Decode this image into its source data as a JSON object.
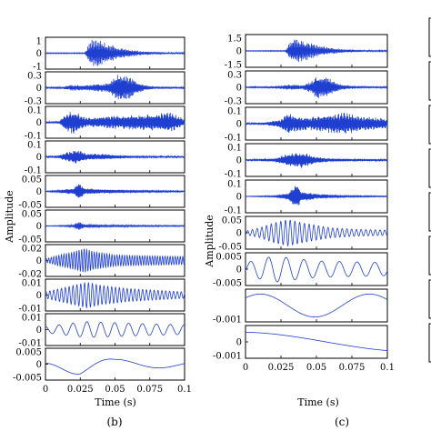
{
  "chart_data": [
    {
      "type": "line",
      "panel_label": "(b)",
      "xlabel": "Time (s)",
      "ylabel": "Amplitude",
      "x_range": [
        0,
        0.1
      ],
      "x_ticks": [
        "0",
        "0.025",
        "0.05",
        "0.075",
        "0.1"
      ],
      "series_color": "#1f3fd1",
      "subplots": [
        {
          "ylim": [
            -1,
            1
          ],
          "y_ticks": [
            "1",
            "0",
            "-1"
          ],
          "envelope": [
            [
              0,
              0.02
            ],
            [
              0.028,
              0.02
            ],
            [
              0.033,
              0.9
            ],
            [
              0.04,
              0.8
            ],
            [
              0.05,
              0.45
            ],
            [
              0.06,
              0.25
            ],
            [
              0.07,
              0.12
            ],
            [
              0.085,
              0.06
            ],
            [
              0.1,
              0.03
            ]
          ],
          "cycles": 300
        },
        {
          "ylim": [
            -0.3,
            0.3
          ],
          "y_ticks": [
            "0.3",
            "0",
            "-0.3"
          ],
          "envelope": [
            [
              0,
              0.01
            ],
            [
              0.012,
              0.02
            ],
            [
              0.02,
              0.06
            ],
            [
              0.03,
              0.05
            ],
            [
              0.046,
              0.1
            ],
            [
              0.052,
              0.27
            ],
            [
              0.06,
              0.22
            ],
            [
              0.07,
              0.06
            ],
            [
              0.08,
              0.02
            ],
            [
              0.1,
              0.01
            ]
          ],
          "cycles": 280
        },
        {
          "ylim": [
            -0.1,
            0.1
          ],
          "y_ticks": [
            "0.1",
            "0",
            "-0.1"
          ],
          "envelope": [
            [
              0,
              0.003
            ],
            [
              0.01,
              0.01
            ],
            [
              0.015,
              0.06
            ],
            [
              0.02,
              0.08
            ],
            [
              0.025,
              0.05
            ],
            [
              0.03,
              0.03
            ],
            [
              0.045,
              0.04
            ],
            [
              0.06,
              0.045
            ],
            [
              0.075,
              0.05
            ],
            [
              0.085,
              0.065
            ],
            [
              0.092,
              0.06
            ],
            [
              0.1,
              0.02
            ]
          ],
          "cycles": 250
        },
        {
          "ylim": [
            -0.1,
            0.1
          ],
          "y_ticks": [
            "0.1",
            "0",
            "-0.1"
          ],
          "envelope": [
            [
              0,
              0.003
            ],
            [
              0.01,
              0.01
            ],
            [
              0.018,
              0.04
            ],
            [
              0.022,
              0.05
            ],
            [
              0.03,
              0.02
            ],
            [
              0.04,
              0.02
            ],
            [
              0.05,
              0.012
            ],
            [
              0.07,
              0.006
            ],
            [
              0.1,
              0.003
            ]
          ],
          "cycles": 220
        },
        {
          "ylim": [
            -0.05,
            0.05
          ],
          "y_ticks": [
            "0.05",
            "0",
            "-0.05"
          ],
          "envelope": [
            [
              0,
              0.001
            ],
            [
              0.01,
              0.004
            ],
            [
              0.02,
              0.01
            ],
            [
              0.024,
              0.028
            ],
            [
              0.028,
              0.01
            ],
            [
              0.04,
              0.006
            ],
            [
              0.06,
              0.004
            ],
            [
              0.1,
              0.002
            ]
          ],
          "cycles": 160
        },
        {
          "ylim": [
            -0.05,
            0.05
          ],
          "y_ticks": [
            "0.05",
            "0",
            "-0.05"
          ],
          "envelope": [
            [
              0,
              0.001
            ],
            [
              0.01,
              0.002
            ],
            [
              0.02,
              0.004
            ],
            [
              0.024,
              0.015
            ],
            [
              0.028,
              0.006
            ],
            [
              0.04,
              0.004
            ],
            [
              0.07,
              0.003
            ],
            [
              0.1,
              0.002
            ]
          ],
          "cycles": 120
        },
        {
          "ylim": [
            -0.02,
            0.02
          ],
          "y_ticks": [
            "0.02",
            "0",
            "-0.02"
          ],
          "envelope": [
            [
              0,
              0.002
            ],
            [
              0.01,
              0.007
            ],
            [
              0.018,
              0.01
            ],
            [
              0.028,
              0.015
            ],
            [
              0.035,
              0.011
            ],
            [
              0.05,
              0.007
            ],
            [
              0.07,
              0.006
            ],
            [
              0.1,
              0.005
            ]
          ],
          "cycles": 55
        },
        {
          "ylim": [
            -0.01,
            0.01
          ],
          "y_ticks": [
            "0.01",
            "0",
            "-0.01"
          ],
          "envelope": [
            [
              0,
              0.002
            ],
            [
              0.01,
              0.004
            ],
            [
              0.02,
              0.006
            ],
            [
              0.03,
              0.008
            ],
            [
              0.04,
              0.006
            ],
            [
              0.06,
              0.004
            ],
            [
              0.08,
              0.003
            ],
            [
              0.1,
              0.002
            ]
          ],
          "cycles": 36
        },
        {
          "ylim": [
            -0.01,
            0.01
          ],
          "y_ticks": [
            "0.01",
            "0",
            "-0.01"
          ],
          "envelope": [
            [
              0,
              0.002
            ],
            [
              0.03,
              0.005
            ],
            [
              0.06,
              0.004
            ],
            [
              0.1,
              0.003
            ]
          ],
          "cycles": 10
        },
        {
          "ylim": [
            -0.005,
            0.005
          ],
          "y_ticks": [
            "0.005",
            "0",
            "-0.005"
          ],
          "envelope": [
            [
              0,
              0.0008
            ],
            [
              0.025,
              0.0035
            ],
            [
              0.05,
              0.0015
            ],
            [
              0.1,
              0.001
            ]
          ],
          "cycles": 1.6
        }
      ]
    },
    {
      "type": "line",
      "panel_label": "(c)",
      "xlabel": "Time (s)",
      "ylabel": "Amplitude",
      "x_range": [
        0,
        0.1
      ],
      "x_ticks": [
        "0",
        "0.025",
        "0.05",
        "0.075",
        "0.1"
      ],
      "series_color": "#1f3fd1",
      "subplots": [
        {
          "ylim": [
            -1.5,
            1.5
          ],
          "y_ticks": [
            "1.5",
            "0",
            "-1.5"
          ],
          "envelope": [
            [
              0,
              0.02
            ],
            [
              0.028,
              0.03
            ],
            [
              0.033,
              1.2
            ],
            [
              0.04,
              1.0
            ],
            [
              0.05,
              0.55
            ],
            [
              0.06,
              0.3
            ],
            [
              0.07,
              0.15
            ],
            [
              0.085,
              0.07
            ],
            [
              0.1,
              0.04
            ]
          ],
          "cycles": 300
        },
        {
          "ylim": [
            -0.3,
            0.3
          ],
          "y_ticks": [
            "0.3",
            "0",
            "-0.3"
          ],
          "envelope": [
            [
              0,
              0.005
            ],
            [
              0.02,
              0.02
            ],
            [
              0.03,
              0.05
            ],
            [
              0.04,
              0.04
            ],
            [
              0.046,
              0.1
            ],
            [
              0.05,
              0.22
            ],
            [
              0.058,
              0.18
            ],
            [
              0.068,
              0.05
            ],
            [
              0.08,
              0.02
            ],
            [
              0.1,
              0.008
            ]
          ],
          "cycles": 280
        },
        {
          "ylim": [
            -0.1,
            0.1
          ],
          "y_ticks": [
            "0.1",
            "0",
            "-0.1"
          ],
          "envelope": [
            [
              0,
              0.003
            ],
            [
              0.015,
              0.01
            ],
            [
              0.025,
              0.03
            ],
            [
              0.03,
              0.07
            ],
            [
              0.035,
              0.05
            ],
            [
              0.045,
              0.04
            ],
            [
              0.06,
              0.06
            ],
            [
              0.07,
              0.07
            ],
            [
              0.08,
              0.05
            ],
            [
              0.09,
              0.04
            ],
            [
              0.1,
              0.03
            ]
          ],
          "cycles": 250
        },
        {
          "ylim": [
            -0.1,
            0.1
          ],
          "y_ticks": [
            "0.1",
            "0",
            "-0.1"
          ],
          "envelope": [
            [
              0,
              0.002
            ],
            [
              0.02,
              0.01
            ],
            [
              0.03,
              0.04
            ],
            [
              0.04,
              0.05
            ],
            [
              0.05,
              0.02
            ],
            [
              0.06,
              0.01
            ],
            [
              0.1,
              0.004
            ]
          ],
          "cycles": 220
        },
        {
          "ylim": [
            -0.1,
            0.1
          ],
          "y_ticks": [
            "0.1",
            "0",
            "-0.1"
          ],
          "envelope": [
            [
              0,
              0.001
            ],
            [
              0.02,
              0.005
            ],
            [
              0.03,
              0.02
            ],
            [
              0.036,
              0.08
            ],
            [
              0.04,
              0.03
            ],
            [
              0.05,
              0.015
            ],
            [
              0.07,
              0.006
            ],
            [
              0.1,
              0.003
            ]
          ],
          "cycles": 150
        },
        {
          "ylim": [
            -0.05,
            0.05
          ],
          "y_ticks": [
            "0.05",
            "0",
            "-0.05"
          ],
          "envelope": [
            [
              0,
              0.005
            ],
            [
              0.01,
              0.015
            ],
            [
              0.02,
              0.03
            ],
            [
              0.03,
              0.04
            ],
            [
              0.04,
              0.03
            ],
            [
              0.06,
              0.015
            ],
            [
              0.08,
              0.01
            ],
            [
              0.1,
              0.008
            ]
          ],
          "cycles": 30
        },
        {
          "ylim": [
            -0.005,
            0.005
          ],
          "y_ticks": [
            "0.005",
            "0",
            "-0.005"
          ],
          "envelope": [
            [
              0,
              0.002
            ],
            [
              0.02,
              0.004
            ],
            [
              0.05,
              0.0025
            ],
            [
              0.1,
              0.002
            ]
          ],
          "cycles": 8
        },
        {
          "ylim": [
            -0.001,
            0.001
          ],
          "y_ticks": [
            "-0.001"
          ],
          "envelope": [
            [
              0,
              0.0007
            ],
            [
              0.05,
              0.0007
            ],
            [
              0.1,
              0.0007
            ]
          ],
          "cycles": 1.3
        },
        {
          "ylim": [
            -0.001,
            0.001
          ],
          "y_ticks": [
            "0",
            "-0.001"
          ],
          "envelope": [
            [
              0,
              0.0006
            ],
            [
              0.1,
              0.0006
            ]
          ],
          "cycles": 0.4
        }
      ]
    }
  ]
}
